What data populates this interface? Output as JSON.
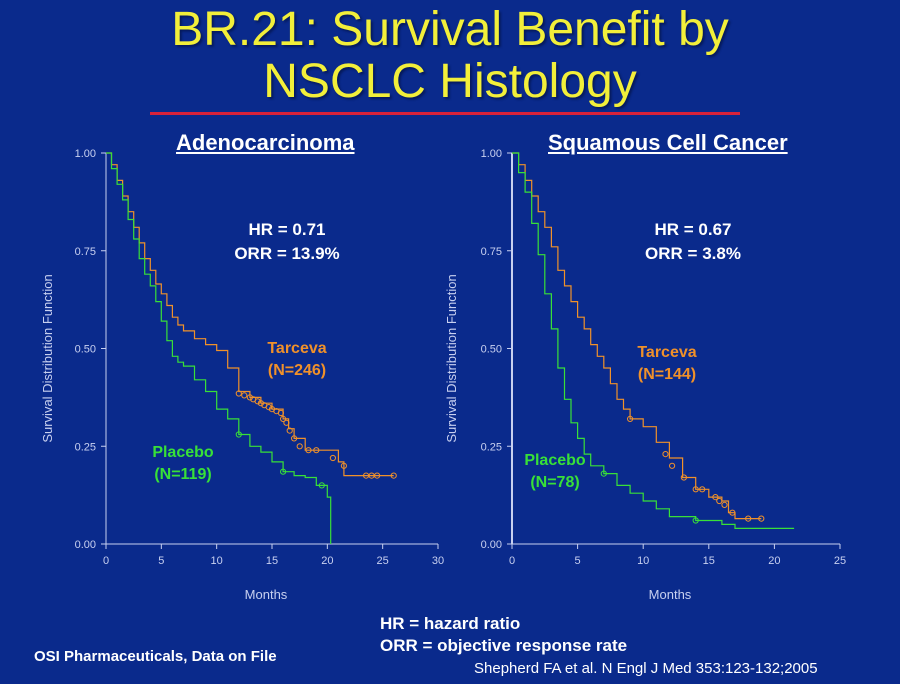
{
  "slide": {
    "title_line1": "BR.21: Survival Benefit by",
    "title_line2": "NSCLC Histology",
    "abbrev_hr": "HR = hazard ratio",
    "abbrev_orr": "ORR = objective response rate",
    "source": "OSI Pharmaceuticals, Data on File",
    "citation": "Shepherd FA et al. N Engl J Med  353:123-132;2005"
  },
  "colors": {
    "background": "#0a2a8c",
    "title": "#f2ef3a",
    "rule": "#d8223a",
    "tarceva": "#f0912a",
    "placebo": "#38e038",
    "axis": "#c8d0f0",
    "text": "#ffffff"
  },
  "chart_data": [
    {
      "type": "line",
      "title": "Adenocarcinoma",
      "xlabel": "Months",
      "ylabel": "Survival Distribution Function",
      "xlim": [
        0,
        30
      ],
      "ylim": [
        0,
        1
      ],
      "xticks": [
        "0",
        "5",
        "10",
        "15",
        "20",
        "25",
        "30"
      ],
      "yticks": [
        "0.00",
        "0.25",
        "0.50",
        "0.75",
        "1.00"
      ],
      "annotations": {
        "hr": "HR = 0.71",
        "orr": "ORR = 13.9%"
      },
      "series": [
        {
          "name": "Tarceva",
          "label_line1": "Tarceva",
          "label_line2": "(N=246)",
          "points": [
            [
              0,
              1.0
            ],
            [
              0.5,
              0.97
            ],
            [
              1,
              0.93
            ],
            [
              1.5,
              0.89
            ],
            [
              2,
              0.85
            ],
            [
              2.5,
              0.81
            ],
            [
              3,
              0.77
            ],
            [
              3.5,
              0.73
            ],
            [
              4,
              0.7
            ],
            [
              4.5,
              0.665
            ],
            [
              5,
              0.64
            ],
            [
              5.5,
              0.61
            ],
            [
              6,
              0.58
            ],
            [
              6.5,
              0.56
            ],
            [
              7,
              0.545
            ],
            [
              8,
              0.525
            ],
            [
              9,
              0.51
            ],
            [
              10,
              0.495
            ],
            [
              11,
              0.45
            ],
            [
              12,
              0.39
            ],
            [
              13,
              0.375
            ],
            [
              14,
              0.36
            ],
            [
              15,
              0.345
            ],
            [
              16,
              0.32
            ],
            [
              16.5,
              0.295
            ],
            [
              17,
              0.27
            ],
            [
              18,
              0.24
            ],
            [
              19,
              0.24
            ],
            [
              20,
              0.24
            ],
            [
              21,
              0.21
            ],
            [
              21.5,
              0.175
            ],
            [
              24,
              0.175
            ],
            [
              26,
              0.175
            ]
          ],
          "censored": [
            [
              12,
              0.385
            ],
            [
              12.5,
              0.38
            ],
            [
              13,
              0.375
            ],
            [
              13.3,
              0.37
            ],
            [
              13.7,
              0.365
            ],
            [
              14,
              0.36
            ],
            [
              14.3,
              0.355
            ],
            [
              14.7,
              0.35
            ],
            [
              15,
              0.345
            ],
            [
              15.4,
              0.34
            ],
            [
              15.8,
              0.335
            ],
            [
              16,
              0.32
            ],
            [
              16.3,
              0.31
            ],
            [
              16.6,
              0.29
            ],
            [
              17,
              0.27
            ],
            [
              17.5,
              0.25
            ],
            [
              18.3,
              0.24
            ],
            [
              19,
              0.24
            ],
            [
              20.5,
              0.22
            ],
            [
              21.5,
              0.2
            ],
            [
              23.5,
              0.175
            ],
            [
              24,
              0.175
            ],
            [
              24.5,
              0.175
            ],
            [
              26,
              0.175
            ]
          ]
        },
        {
          "name": "Placebo",
          "label_line1": "Placebo",
          "label_line2": "(N=119)",
          "points": [
            [
              0,
              1.0
            ],
            [
              0.5,
              0.96
            ],
            [
              1,
              0.92
            ],
            [
              1.5,
              0.88
            ],
            [
              2,
              0.83
            ],
            [
              2.5,
              0.78
            ],
            [
              3,
              0.73
            ],
            [
              3.5,
              0.69
            ],
            [
              4,
              0.66
            ],
            [
              4.5,
              0.62
            ],
            [
              5,
              0.57
            ],
            [
              5.5,
              0.52
            ],
            [
              6,
              0.48
            ],
            [
              6.5,
              0.465
            ],
            [
              7,
              0.455
            ],
            [
              8,
              0.42
            ],
            [
              9,
              0.39
            ],
            [
              10,
              0.345
            ],
            [
              11,
              0.32
            ],
            [
              12,
              0.28
            ],
            [
              13,
              0.25
            ],
            [
              14,
              0.235
            ],
            [
              15,
              0.21
            ],
            [
              16,
              0.185
            ],
            [
              17,
              0.175
            ],
            [
              18,
              0.17
            ],
            [
              19,
              0.15
            ],
            [
              20,
              0.12
            ],
            [
              20.3,
              0.0
            ]
          ],
          "censored": [
            [
              12,
              0.28
            ],
            [
              16,
              0.185
            ],
            [
              19.5,
              0.15
            ]
          ]
        }
      ]
    },
    {
      "type": "line",
      "title": "Squamous Cell Cancer",
      "xlabel": "Months",
      "ylabel": "Survival Distribution Function",
      "xlim": [
        0,
        25
      ],
      "ylim": [
        0,
        1
      ],
      "xticks": [
        "0",
        "5",
        "10",
        "15",
        "20",
        "25"
      ],
      "yticks": [
        "0.00",
        "0.25",
        "0.50",
        "0.75",
        "1.00"
      ],
      "annotations": {
        "hr": "HR = 0.67",
        "orr": "ORR = 3.8%"
      },
      "series": [
        {
          "name": "Tarceva",
          "label_line1": "Tarceva",
          "label_line2": "(N=144)",
          "points": [
            [
              0,
              1.0
            ],
            [
              0.5,
              0.97
            ],
            [
              1,
              0.93
            ],
            [
              1.5,
              0.89
            ],
            [
              2,
              0.85
            ],
            [
              2.5,
              0.81
            ],
            [
              3,
              0.76
            ],
            [
              3.5,
              0.7
            ],
            [
              4,
              0.66
            ],
            [
              4.5,
              0.62
            ],
            [
              5,
              0.58
            ],
            [
              5.5,
              0.55
            ],
            [
              6,
              0.51
            ],
            [
              6.5,
              0.48
            ],
            [
              7,
              0.45
            ],
            [
              7.5,
              0.41
            ],
            [
              8,
              0.37
            ],
            [
              8.5,
              0.345
            ],
            [
              9,
              0.32
            ],
            [
              10,
              0.3
            ],
            [
              11,
              0.26
            ],
            [
              12,
              0.22
            ],
            [
              13,
              0.17
            ],
            [
              14,
              0.14
            ],
            [
              15,
              0.12
            ],
            [
              16,
              0.11
            ],
            [
              16.5,
              0.08
            ],
            [
              17,
              0.065
            ],
            [
              19,
              0.065
            ]
          ],
          "censored": [
            [
              9,
              0.32
            ],
            [
              11.7,
              0.23
            ],
            [
              12.2,
              0.2
            ],
            [
              13.1,
              0.17
            ],
            [
              14,
              0.14
            ],
            [
              14.5,
              0.14
            ],
            [
              15.5,
              0.12
            ],
            [
              15.8,
              0.11
            ],
            [
              16.2,
              0.1
            ],
            [
              16.8,
              0.08
            ],
            [
              18,
              0.065
            ],
            [
              19,
              0.065
            ]
          ]
        },
        {
          "name": "Placebo",
          "label_line1": "Placebo",
          "label_line2": "(N=78)",
          "points": [
            [
              0,
              1.0
            ],
            [
              0.5,
              0.95
            ],
            [
              1,
              0.9
            ],
            [
              1.5,
              0.82
            ],
            [
              2,
              0.74
            ],
            [
              2.5,
              0.64
            ],
            [
              3,
              0.55
            ],
            [
              3.5,
              0.45
            ],
            [
              4,
              0.37
            ],
            [
              4.5,
              0.31
            ],
            [
              5,
              0.27
            ],
            [
              5.5,
              0.23
            ],
            [
              6,
              0.2
            ],
            [
              7,
              0.18
            ],
            [
              8,
              0.15
            ],
            [
              9,
              0.13
            ],
            [
              10,
              0.11
            ],
            [
              11,
              0.09
            ],
            [
              12,
              0.07
            ],
            [
              14,
              0.06
            ],
            [
              16,
              0.05
            ],
            [
              17,
              0.04
            ],
            [
              21.5,
              0.04
            ]
          ],
          "censored": [
            [
              7,
              0.18
            ],
            [
              14,
              0.06
            ]
          ]
        }
      ]
    }
  ]
}
